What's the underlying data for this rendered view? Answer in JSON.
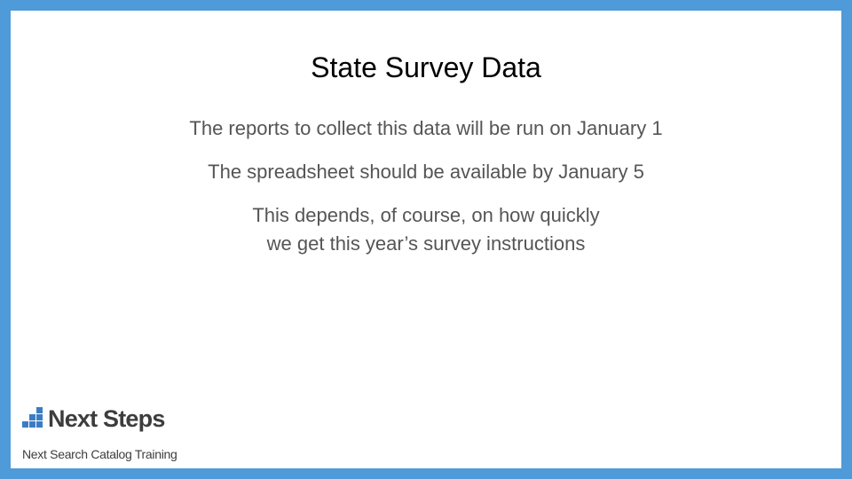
{
  "slide": {
    "title": "State Survey Data",
    "paragraphs": [
      {
        "lines": [
          "The reports to collect this data will be run on January 1"
        ]
      },
      {
        "lines": [
          "The spreadsheet should be available by January 5"
        ]
      },
      {
        "lines": [
          "This depends, of course, on how quickly",
          "we get this year’s survey instructions"
        ]
      }
    ]
  },
  "logo": {
    "name": "Next Steps",
    "tagline": "Next Search Catalog Training",
    "colors": {
      "mark": "#3b7dc4",
      "text": "#3d3d3d"
    }
  },
  "theme": {
    "border_color": "#4f9ad9",
    "background": "#ffffff",
    "body_text_color": "#555555"
  }
}
